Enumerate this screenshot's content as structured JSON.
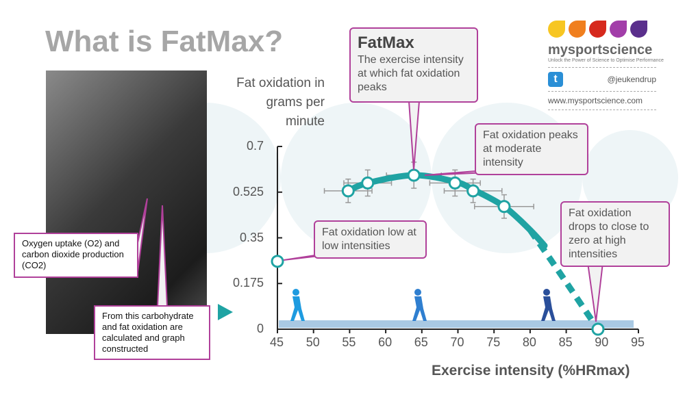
{
  "title": "What is FatMax?",
  "logo": {
    "brand": "mysportscience",
    "tagline": "Unlock the Power of Science to Optimise Performance",
    "twitter": "@jeukendrup",
    "website": "www.mysportscience.com",
    "drop_colors": [
      "#f7c622",
      "#f07f1f",
      "#d6291d",
      "#a23ea9",
      "#5a2f8c"
    ]
  },
  "watermark": "mysportscience",
  "callouts": {
    "fatmax_title": "FatMax",
    "fatmax_text": "The exercise intensity at which fat oxidation peaks",
    "peak": "Fat oxidation peaks at moderate intensity",
    "low": "Fat oxidation low at low intensities",
    "high": "Fat oxidation drops to close to zero at high intensities",
    "o2": "Oxygen uptake (O2) and carbon dioxide production (CO2)",
    "calc": "From this carbohydrate and fat oxidation are calculated and graph constructed"
  },
  "colors": {
    "accent": "#1fa3a3",
    "callout_border": "#b0409a",
    "error_bar": "#999999",
    "band": "#a9c9e3"
  },
  "chart_data": {
    "type": "line",
    "xlabel": "Exercise intensity (%HRmax)",
    "ylabel": "Fat oxidation in grams per minute",
    "xlim": [
      45,
      95
    ],
    "ylim": [
      0,
      0.7
    ],
    "xticks": [
      "45",
      "50",
      "55",
      "60",
      "65",
      "70",
      "75",
      "80",
      "85",
      "90",
      "95"
    ],
    "yticks": [
      "0",
      "0.175",
      "0.35",
      "0.525",
      "0.7"
    ],
    "points": [
      {
        "x": 45,
        "y": 0.26
      },
      {
        "x": 54.8,
        "y": 0.53
      },
      {
        "x": 57.5,
        "y": 0.56
      },
      {
        "x": 63.9,
        "y": 0.59
      },
      {
        "x": 69.6,
        "y": 0.56
      },
      {
        "x": 72.1,
        "y": 0.53
      },
      {
        "x": 76.4,
        "y": 0.47
      },
      {
        "x": 89.4,
        "y": 0
      }
    ],
    "error_bars": [
      {
        "x": 54.8,
        "y": 0.53,
        "xerr": 3.3,
        "yerr": 0.045
      },
      {
        "x": 57.5,
        "y": 0.56,
        "xerr": 3.3,
        "yerr": 0.05
      },
      {
        "x": 63.9,
        "y": 0.59,
        "xerr": 3.8,
        "yerr": 0.05
      },
      {
        "x": 69.6,
        "y": 0.56,
        "xerr": 3.5,
        "yerr": 0.05
      },
      {
        "x": 72.1,
        "y": 0.53,
        "xerr": 4,
        "yerr": 0.045
      },
      {
        "x": 76.4,
        "y": 0.47,
        "xerr": 4.1,
        "yerr": 0.045
      }
    ],
    "curve": [
      {
        "x": 54.8,
        "y": 0.53
      },
      {
        "x": 57.5,
        "y": 0.56
      },
      {
        "x": 63.9,
        "y": 0.59
      },
      {
        "x": 69.6,
        "y": 0.565
      },
      {
        "x": 72.1,
        "y": 0.535
      },
      {
        "x": 76.4,
        "y": 0.47
      },
      {
        "x": 80,
        "y": 0.38
      },
      {
        "x": 84,
        "y": 0.22
      },
      {
        "x": 89.4,
        "y": 0
      }
    ],
    "dashed_from_x": 81,
    "grid": false
  }
}
